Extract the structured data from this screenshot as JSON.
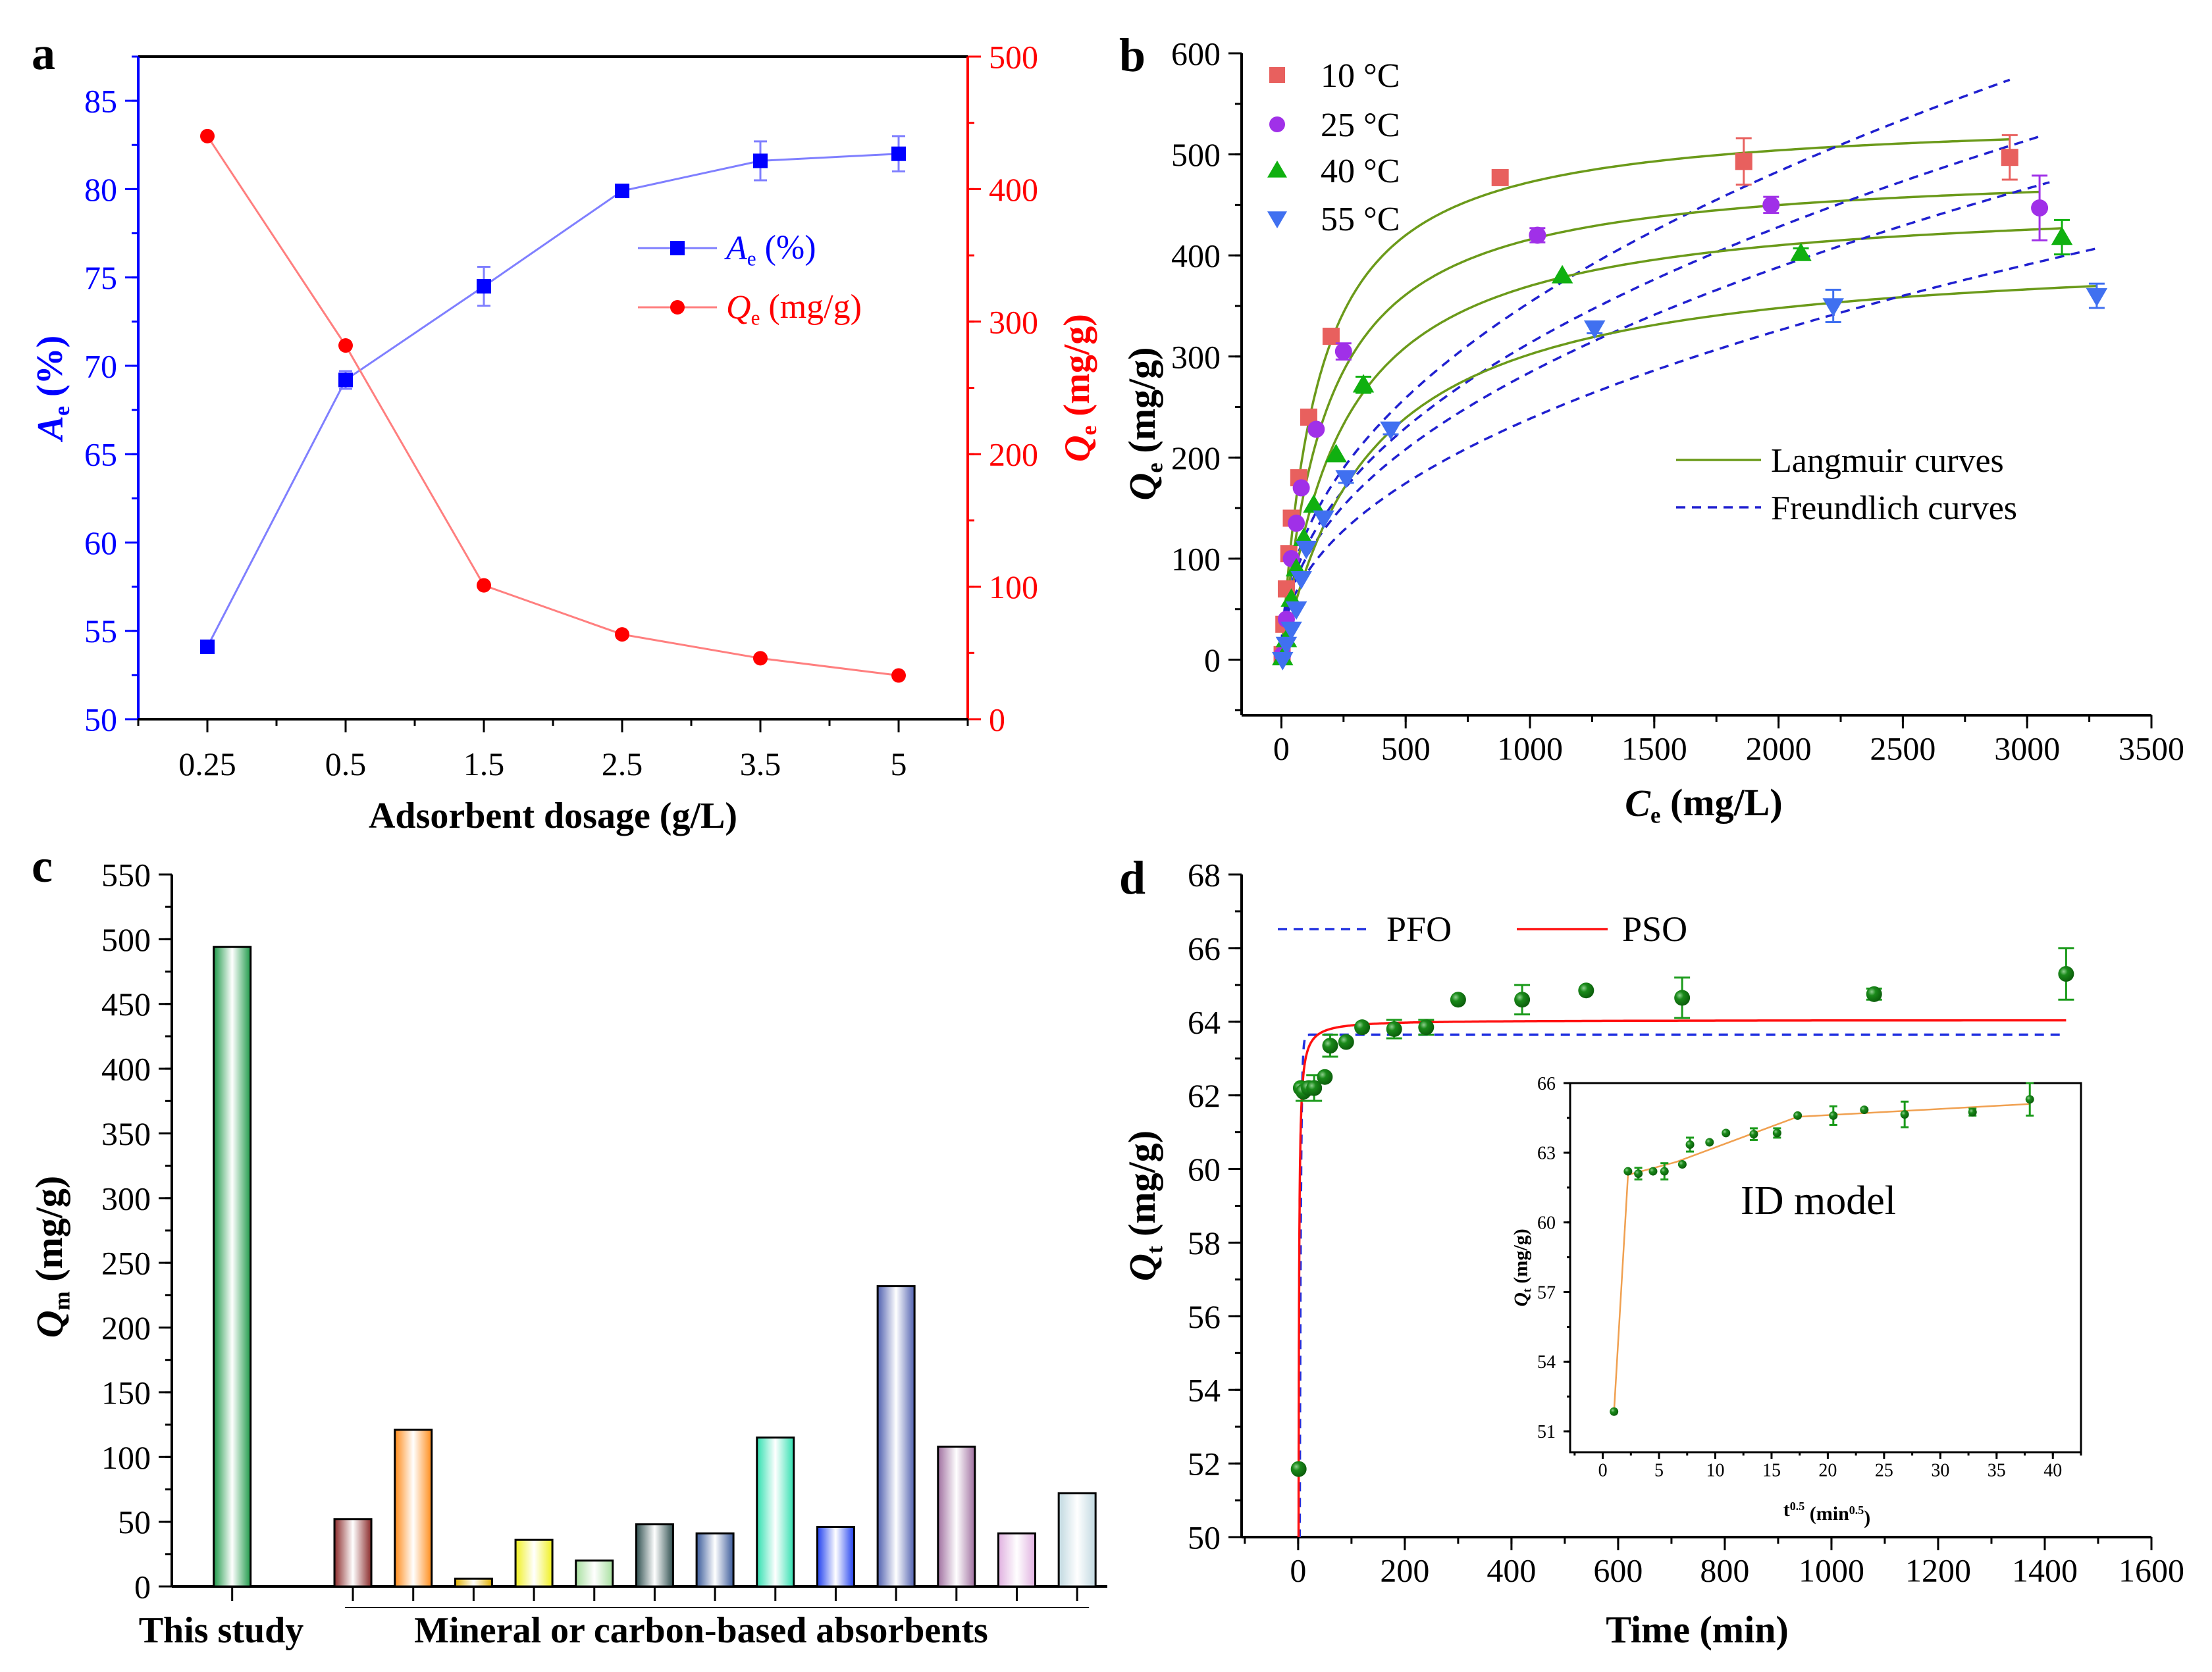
{
  "chart_data": [
    {
      "panel": "a",
      "type": "line",
      "categories": [
        "0.25",
        "0.5",
        "1.5",
        "2.5",
        "3.5",
        "5"
      ],
      "xlabel": "Adsorbent dosage (g/L)",
      "ylabel_left": {
        "main": "A",
        "sub": "e",
        "unit": " (%)"
      },
      "ylabel_right": {
        "main": "Q",
        "sub": "e",
        "unit": " (mg/g)"
      },
      "ylim_left": [
        50,
        87.5
      ],
      "ylim_right": [
        0,
        500
      ],
      "yticks_left": [
        50,
        55,
        60,
        65,
        70,
        75,
        80,
        85
      ],
      "yticks_right": [
        0,
        100,
        200,
        300,
        400,
        500
      ],
      "series": [
        {
          "name": {
            "main": "A",
            "sub": "e",
            "unit": " (%)"
          },
          "axis": "left",
          "color": "#0000ff",
          "line_color": "#7f7fff",
          "marker": "square",
          "values": [
            54.1,
            69.2,
            74.5,
            79.9,
            81.6,
            82.0
          ],
          "errors": [
            0,
            0.5,
            1.1,
            0,
            1.1,
            1.0
          ]
        },
        {
          "name": {
            "main": "Q",
            "sub": "e",
            "unit": " (mg/g)"
          },
          "axis": "right",
          "color": "#ff0000",
          "line_color": "#ff7f7f",
          "marker": "circle",
          "values": [
            440,
            282,
            101,
            64,
            46,
            33
          ],
          "errors": [
            0,
            0,
            0,
            0,
            0,
            0
          ]
        }
      ]
    },
    {
      "panel": "b",
      "type": "scatter",
      "xlabel": {
        "main": "C",
        "sub": "e",
        "unit": " (mg/L)"
      },
      "ylabel": {
        "main": "Q",
        "sub": "e",
        "unit": " (mg/g)"
      },
      "xlim": [
        -160,
        3500
      ],
      "ylim": [
        -55,
        600
      ],
      "xticks": [
        0,
        500,
        1000,
        1500,
        2000,
        2500,
        3000,
        3500
      ],
      "yticks": [
        0,
        100,
        200,
        300,
        400,
        500,
        600
      ],
      "fit_legend": {
        "langmuir": "Langmuir curves",
        "freundlich": "Freundlich curves"
      },
      "langmuir_color": "#6b9a1a",
      "freundlich_color": "#2020d0",
      "series": [
        {
          "name": "10 °C",
          "color": "#e8605e",
          "marker": "square",
          "x": [
            3,
            10,
            20,
            30,
            40,
            70,
            110,
            200,
            880,
            1860,
            2930
          ],
          "y": [
            5,
            35,
            70,
            105,
            140,
            180,
            240,
            320,
            477,
            493,
            497
          ],
          "errors": [
            0,
            0,
            0,
            0,
            0,
            0,
            0,
            0,
            0,
            23,
            22
          ],
          "langmuir": {
            "qm": 540,
            "kl": 0.007,
            "cmax": 2930
          },
          "freundlich": {
            "kf": 15.8,
            "inv_n": 0.45,
            "cmax": 2930
          }
        },
        {
          "name": "25 °C",
          "color": "#a030e8",
          "marker": "circle",
          "x": [
            5,
            20,
            40,
            60,
            80,
            140,
            250,
            1030,
            1970,
            3050
          ],
          "y": [
            5,
            40,
            100,
            135,
            170,
            228,
            305,
            420,
            450,
            447
          ],
          "errors": [
            0,
            0,
            0,
            0,
            0,
            0,
            8,
            7,
            8,
            32
          ],
          "langmuir": {
            "qm": 490,
            "kl": 0.0056,
            "cmax": 3050
          },
          "freundlich": {
            "kf": 14.0,
            "inv_n": 0.45,
            "cmax": 3050
          }
        },
        {
          "name": "40 °C",
          "color": "#10b010",
          "marker": "tri-up",
          "x": [
            5,
            20,
            40,
            60,
            90,
            130,
            220,
            330,
            1130,
            2090,
            3140
          ],
          "y": [
            2,
            20,
            60,
            90,
            120,
            153,
            203,
            272,
            380,
            402,
            418
          ],
          "errors": [
            0,
            0,
            0,
            0,
            0,
            0,
            0,
            8,
            0,
            5,
            17
          ],
          "langmuir": {
            "qm": 460,
            "kl": 0.0041,
            "cmax": 3140
          },
          "freundlich": {
            "kf": 12.7,
            "inv_n": 0.45,
            "cmax": 3090
          }
        },
        {
          "name": "55 °C",
          "color": "#4070f0",
          "marker": "tri-down",
          "x": [
            5,
            20,
            40,
            60,
            80,
            100,
            170,
            260,
            440,
            1260,
            2220,
            3280
          ],
          "y": [
            0,
            15,
            30,
            50,
            80,
            110,
            140,
            180,
            228,
            328,
            350,
            360
          ],
          "errors": [
            0,
            0,
            0,
            0,
            0,
            0,
            0,
            5,
            5,
            5,
            16,
            12
          ],
          "langmuir": {
            "qm": 410,
            "kl": 0.0028,
            "cmax": 3280
          },
          "freundlich": {
            "kf": 10.65,
            "inv_n": 0.45,
            "cmax": 3280
          }
        }
      ]
    },
    {
      "panel": "c",
      "type": "bar",
      "ylabel": {
        "main": "Q",
        "sub": "m",
        "unit": " (mg/g)"
      },
      "ylim": [
        0,
        550
      ],
      "yticks": [
        0,
        50,
        100,
        150,
        200,
        250,
        300,
        350,
        400,
        450,
        500,
        550
      ],
      "groups": [
        "This study",
        "Mineral or carbon-based absorbents"
      ],
      "this_study": {
        "value": 494,
        "color": "#1f9a4a"
      },
      "others": {
        "values": [
          52,
          121,
          6,
          36,
          20,
          48,
          41,
          115,
          46,
          232,
          108,
          41,
          72
        ],
        "colors": [
          "#8a2a2a",
          "#ff8c1a",
          "#e0b000",
          "#f0f020",
          "#a8e0a0",
          "#2f4f4f",
          "#3a5a9a",
          "#30e0b0",
          "#2040f0",
          "#5060b0",
          "#a070a0",
          "#e0b0e0",
          "#c0d8e0"
        ]
      }
    },
    {
      "panel": "d",
      "type": "scatter",
      "xlabel": "Time (min)",
      "ylabel": {
        "main": "Q",
        "sub": "t",
        "unit": " (mg/g)"
      },
      "xlim": [
        -106,
        1600
      ],
      "ylim": [
        50,
        68
      ],
      "xticks": [
        0,
        200,
        400,
        600,
        800,
        1000,
        1200,
        1400,
        1600
      ],
      "yticks": [
        50,
        52,
        54,
        56,
        58,
        60,
        62,
        64,
        66,
        68
      ],
      "points": {
        "color": "#1a8a1a",
        "x": [
          1,
          5,
          10,
          20,
          30,
          50,
          60,
          90,
          120,
          180,
          240,
          300,
          420,
          540,
          720,
          1080,
          1440
        ],
        "y": [
          51.85,
          62.2,
          62.1,
          62.2,
          62.2,
          62.5,
          63.35,
          63.45,
          63.85,
          63.8,
          63.85,
          64.6,
          64.6,
          64.85,
          64.65,
          64.75,
          65.3
        ],
        "errors": [
          0,
          0,
          0.25,
          0,
          0.35,
          0,
          0.3,
          0,
          0,
          0.25,
          0.2,
          0,
          0.4,
          0,
          0.55,
          0.15,
          0.7
        ]
      },
      "models": [
        {
          "name": "PFO",
          "color": "#2030e0",
          "style": "dashed",
          "qe": 63.65,
          "k": 0.5
        },
        {
          "name": "PSO",
          "color": "#ff1010",
          "style": "solid",
          "qe": 64.05,
          "k": 0.067
        }
      ],
      "inset": {
        "title": "ID model",
        "xlabel": {
          "main": "t",
          "sup": "0.5",
          "open": " (min",
          "sup2": "0.5",
          "close": ")"
        },
        "ylabel": {
          "main": "Q",
          "sub": "t",
          "unit": " (mg/g)"
        },
        "xlim": [
          -2.9,
          42.5
        ],
        "ylim": [
          50.1,
          66
        ],
        "xticks": [
          0,
          5,
          10,
          15,
          20,
          25,
          30,
          35,
          40
        ],
        "yticks": [
          51,
          54,
          57,
          60,
          63,
          66
        ],
        "x": [
          1,
          2.24,
          3.16,
          4.47,
          5.48,
          7.07,
          7.75,
          9.49,
          10.95,
          13.42,
          15.49,
          17.32,
          20.49,
          23.24,
          26.83,
          32.86,
          37.95
        ],
        "line_color": "#f0a050",
        "line_x": [
          1,
          2.24,
          6.5,
          17.32,
          37.95
        ],
        "line_y": [
          51.85,
          62.05,
          62.6,
          64.55,
          65.1
        ]
      }
    }
  ]
}
